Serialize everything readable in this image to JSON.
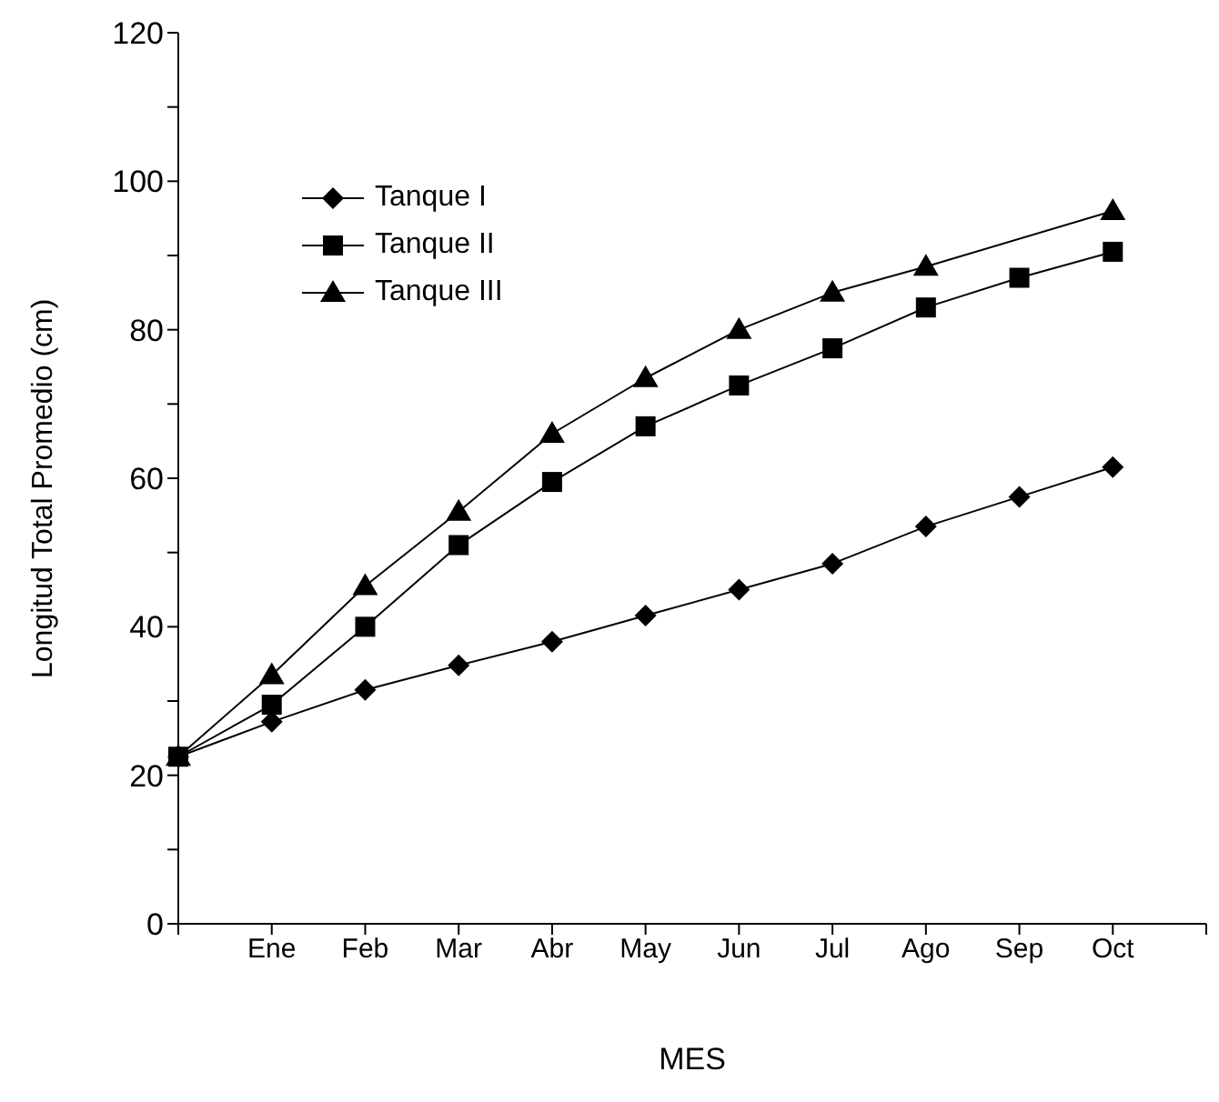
{
  "chart_data": {
    "type": "line",
    "xlabel": "MES",
    "ylabel": "Longitud Total Promedio (cm)",
    "categories": [
      null,
      "Ene",
      "Feb",
      "Mar",
      "Abr",
      "May",
      "Jun",
      "Jul",
      "Ago",
      "Sep",
      "Oct",
      null
    ],
    "series": [
      {
        "name": "Tanque I",
        "color": "#000000",
        "marker": "diamond",
        "values": [
          22.5,
          27.2,
          31.5,
          34.8,
          38,
          41.5,
          45,
          48.5,
          53.5,
          57.5,
          61.5,
          null
        ]
      },
      {
        "name": "Tanque II",
        "color": "#000000",
        "marker": "square",
        "values": [
          22.5,
          29.5,
          40,
          51,
          59.5,
          67,
          72.5,
          77.5,
          83,
          87,
          90.5,
          null
        ]
      },
      {
        "name": "Tanque III",
        "color": "#000000",
        "marker": "triangle",
        "values": [
          22.5,
          33.5,
          45.5,
          55.5,
          66,
          73.5,
          80,
          85,
          88.5,
          null,
          96,
          null
        ]
      }
    ],
    "ylim": [
      0,
      120
    ],
    "yticks": [
      0,
      {
        "value": 10,
        "label": null
      },
      20,
      {
        "value": 30,
        "label": null
      },
      40,
      {
        "value": 50,
        "label": null
      },
      60,
      {
        "value": 70,
        "label": null
      },
      80,
      {
        "value": 90,
        "label": null
      },
      100,
      {
        "value": 110,
        "label": null
      },
      120
    ],
    "grid": false,
    "legend": "top left",
    "line_style": "solid"
  }
}
